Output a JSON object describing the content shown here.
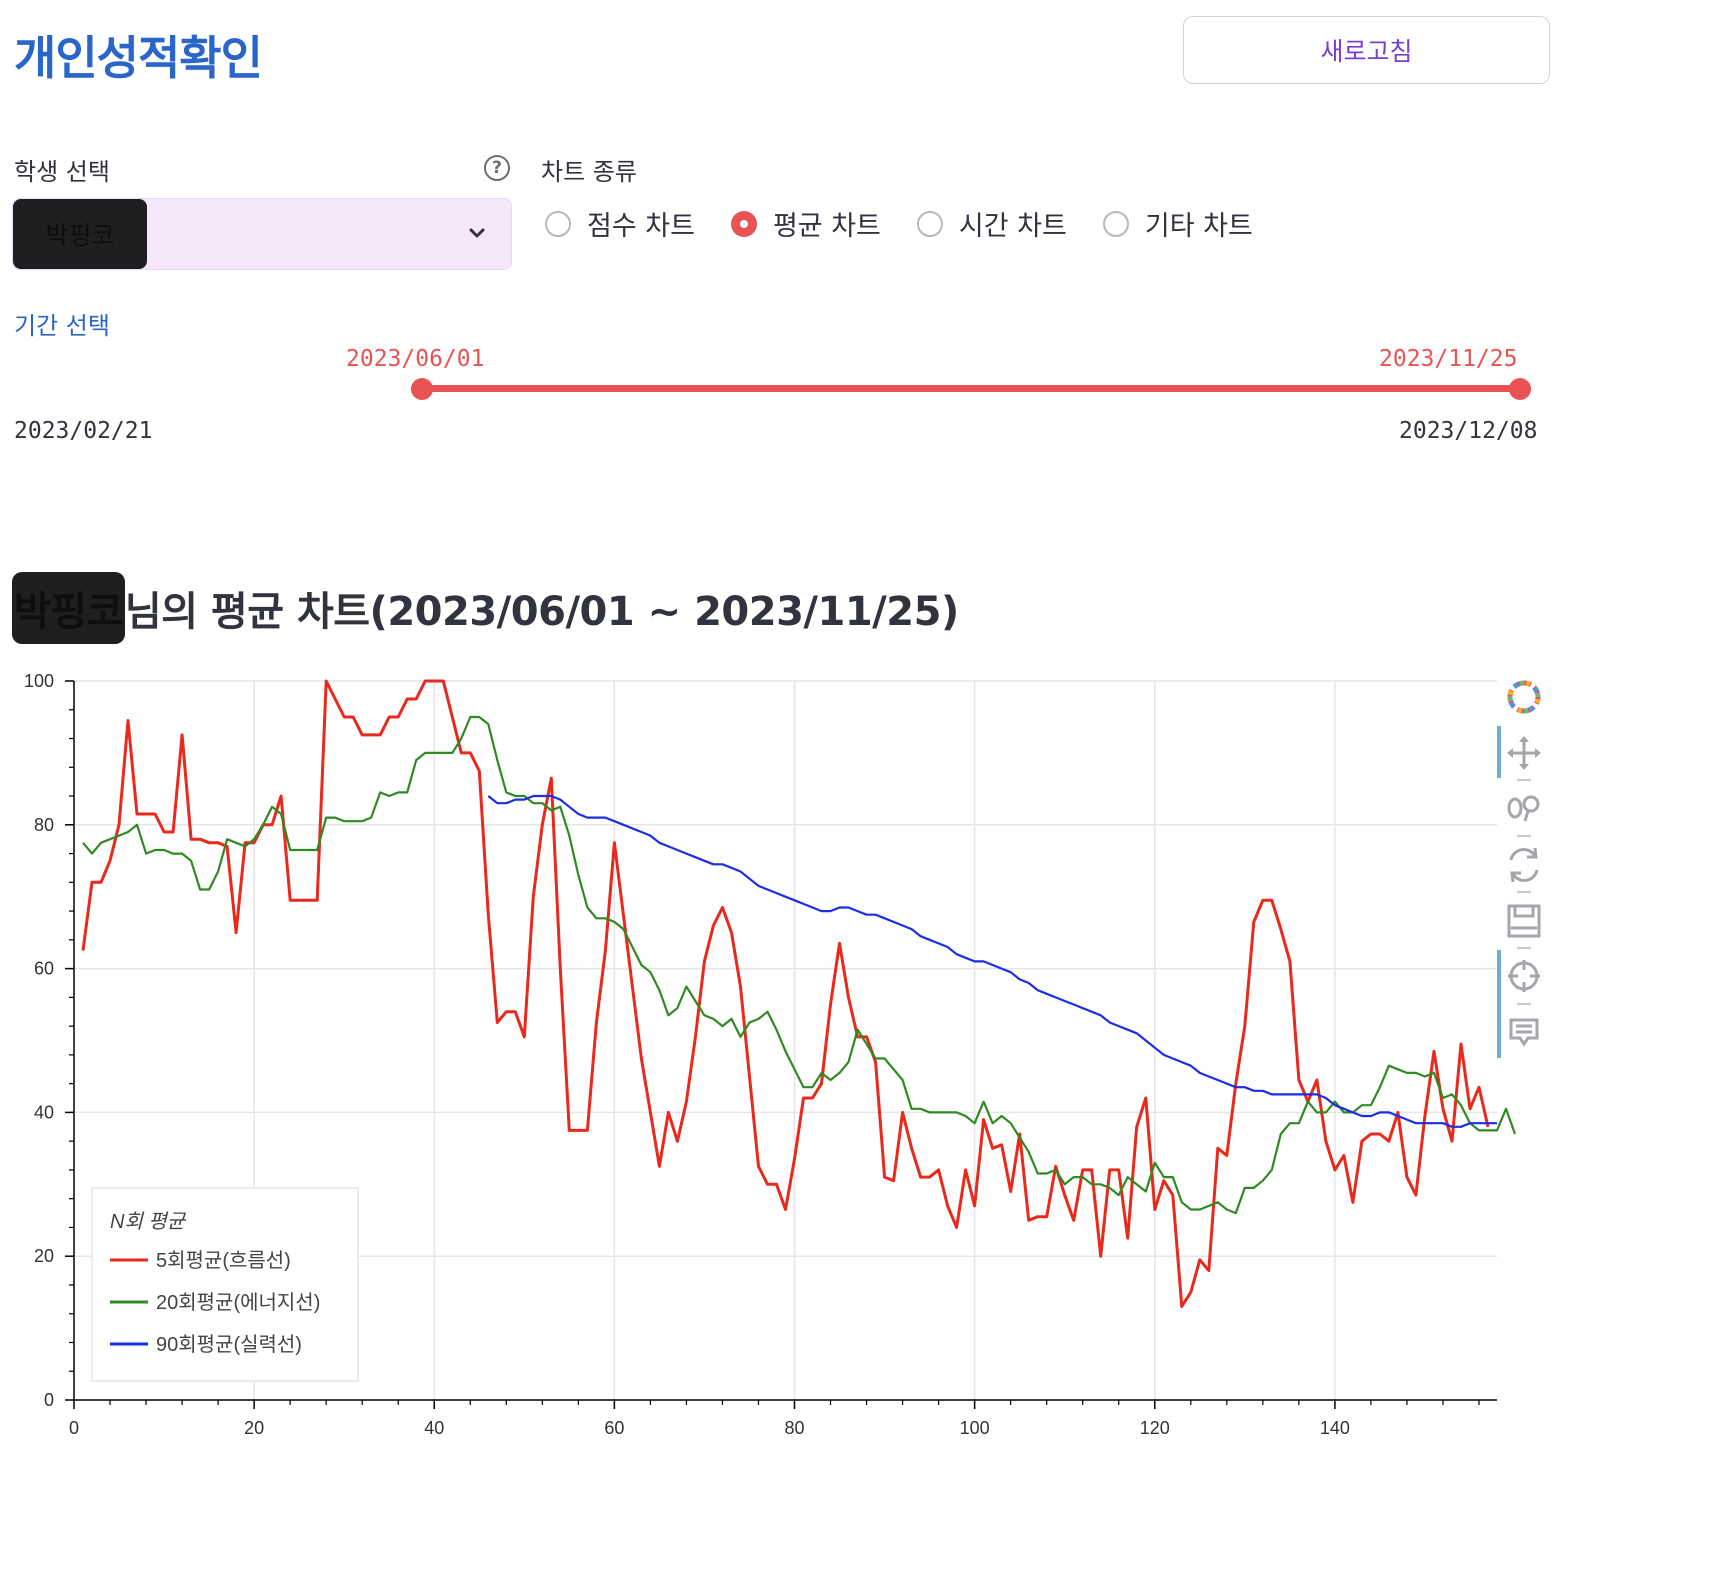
{
  "header": {
    "title": "개인성적확인",
    "refresh_label": "새로고침"
  },
  "student_select": {
    "label": "학생 선택",
    "help_icon": "question-circle-icon",
    "selected": "박핑코"
  },
  "chart_type": {
    "label": "차트 종류",
    "options": [
      "점수 차트",
      "평균 차트",
      "시간 차트",
      "기타 차트"
    ],
    "selected": "평균 차트"
  },
  "period": {
    "label": "기간 선택",
    "start_value": "2023/06/01",
    "end_value": "2023/11/25",
    "min": "2023/02/21",
    "max": "2023/12/08"
  },
  "chart_title": {
    "name": "박핑코",
    "suffix": "님의 평균 차트(2023/06/01 ~ 2023/11/25)"
  },
  "toolbar": [
    "bokeh-logo-icon",
    "pan-icon",
    "wheel-zoom-icon",
    "reset-icon",
    "save-icon",
    "crosshair-icon",
    "hover-icon"
  ],
  "chart_data": {
    "type": "line",
    "xlim": [
      0,
      158
    ],
    "ylim": [
      0,
      100
    ],
    "x_ticks": [
      0,
      20,
      40,
      60,
      80,
      100,
      120,
      140
    ],
    "y_ticks": [
      0,
      20,
      40,
      60,
      80,
      100
    ],
    "grid": true,
    "legend": {
      "title": "N회 평균",
      "placement": "bottom-left"
    },
    "series": [
      {
        "name": "5회평균(흐름선)",
        "color": "#e8291c",
        "x_start": 1,
        "values": [
          62.5,
          72,
          72,
          75,
          80,
          94.5,
          81.5,
          81.5,
          81.5,
          79,
          79,
          92.5,
          78,
          78,
          77.5,
          77.5,
          77,
          65,
          77.5,
          77.5,
          80,
          80,
          84,
          69.5,
          69.5,
          69.5,
          69.5,
          100,
          97.5,
          95,
          95,
          92.5,
          92.5,
          92.5,
          95,
          95,
          97.5,
          97.5,
          100,
          100,
          100,
          95,
          90,
          90,
          87.5,
          67.5,
          52.5,
          54,
          54,
          50.5,
          70,
          80,
          86.5,
          60,
          37.5,
          37.5,
          37.5,
          52.5,
          62.5,
          77.5,
          67.5,
          57.5,
          47.5,
          40,
          32.5,
          40,
          36,
          41.5,
          50.5,
          61,
          66,
          68.5,
          65,
          57.5,
          45,
          32.5,
          30,
          30,
          26.5,
          33.5,
          42,
          42,
          44,
          55,
          63.5,
          56,
          50.5,
          50.5,
          47,
          31,
          30.5,
          40,
          35,
          31,
          31,
          32,
          27,
          24,
          32,
          27,
          39,
          35,
          35.5,
          29,
          37,
          25,
          25.5,
          25.5,
          32.5,
          28.5,
          25,
          32,
          32,
          20,
          32,
          32,
          22.5,
          38,
          42,
          26.5,
          30.5,
          28.5,
          13,
          15,
          19.5,
          18,
          35,
          34,
          44,
          52,
          66.5,
          69.5,
          69.5,
          65.5,
          61,
          44.5,
          41.5,
          44.5,
          36,
          32,
          34,
          27.5,
          36,
          37,
          37,
          36,
          40,
          31,
          28.5,
          39.5,
          48.5,
          40.5,
          36,
          49.5,
          40.5,
          43.5,
          38
        ]
      },
      {
        "name": "20회평균(에너지선)",
        "color": "#2f8a21",
        "x_start": 1,
        "values": [
          77.5,
          76,
          77.5,
          78,
          78.5,
          79,
          80,
          76,
          76.5,
          76.5,
          76,
          76,
          75,
          71,
          71,
          73.5,
          78,
          77.5,
          77,
          78,
          80,
          82.5,
          81.5,
          76.5,
          76.5,
          76.5,
          76.5,
          81,
          81,
          80.5,
          80.5,
          80.5,
          81,
          84.5,
          84,
          84.5,
          84.5,
          89,
          90,
          90,
          90,
          90,
          92,
          95,
          95,
          94,
          89,
          84.5,
          84,
          84,
          83,
          83,
          82,
          82.5,
          78.5,
          73,
          68.5,
          67,
          67,
          66.5,
          65.5,
          63,
          60.5,
          59.5,
          57,
          53.5,
          54.5,
          57.5,
          55.5,
          53.5,
          53,
          52,
          53,
          50.5,
          52.5,
          53,
          54,
          51.5,
          48.5,
          46,
          43.5,
          43.5,
          45.5,
          44.5,
          45.5,
          47,
          51.5,
          49.5,
          47.5,
          47.5,
          46,
          44.5,
          40.5,
          40.5,
          40,
          40,
          40,
          40,
          39.5,
          38.5,
          41.5,
          38.5,
          39.5,
          38.5,
          36.5,
          34.5,
          31.5,
          31.5,
          32,
          30,
          31,
          31,
          30,
          30,
          29.5,
          28.5,
          31,
          30,
          29,
          33,
          31,
          31,
          27.5,
          26.5,
          26.5,
          27,
          27.5,
          26.5,
          26,
          29.5,
          29.5,
          30.5,
          32,
          37,
          38.5,
          38.5,
          41.5,
          40,
          40,
          41.5,
          40,
          40,
          41,
          41,
          43.5,
          46.5,
          46,
          45.5,
          45.5,
          45,
          45.5,
          42,
          42.5,
          41,
          38.5,
          37.5,
          37.5,
          37.5,
          40.5,
          37
        ]
      },
      {
        "name": "90회평균(실력선)",
        "color": "#1a2ee6",
        "x_start": 46,
        "values": [
          84,
          83,
          83,
          83.5,
          83.5,
          84,
          84,
          84,
          83.5,
          82.5,
          81.5,
          81,
          81,
          81,
          80.5,
          80,
          79.5,
          79,
          78.5,
          77.5,
          77,
          76.5,
          76,
          75.5,
          75,
          74.5,
          74.5,
          74,
          73.5,
          72.5,
          71.5,
          71,
          70.5,
          70,
          69.5,
          69,
          68.5,
          68,
          68,
          68.5,
          68.5,
          68,
          67.5,
          67.5,
          67,
          66.5,
          66,
          65.5,
          64.5,
          64,
          63.5,
          63,
          62,
          61.5,
          61,
          61,
          60.5,
          60,
          59.5,
          58.5,
          58,
          57,
          56.5,
          56,
          55.5,
          55,
          54.5,
          54,
          53.5,
          52.5,
          52,
          51.5,
          51,
          50,
          49,
          48,
          47.5,
          47,
          46.5,
          45.5,
          45,
          44.5,
          44,
          43.5,
          43.5,
          43,
          43,
          42.5,
          42.5,
          42.5,
          42.5,
          42.5,
          42.5,
          42,
          41,
          40.5,
          40,
          39.5,
          39.5,
          40,
          40,
          39.5,
          39,
          38.5,
          38.5,
          38.5,
          38.5,
          38,
          38,
          38.5,
          38.5,
          38.5,
          38.5
        ]
      }
    ]
  }
}
